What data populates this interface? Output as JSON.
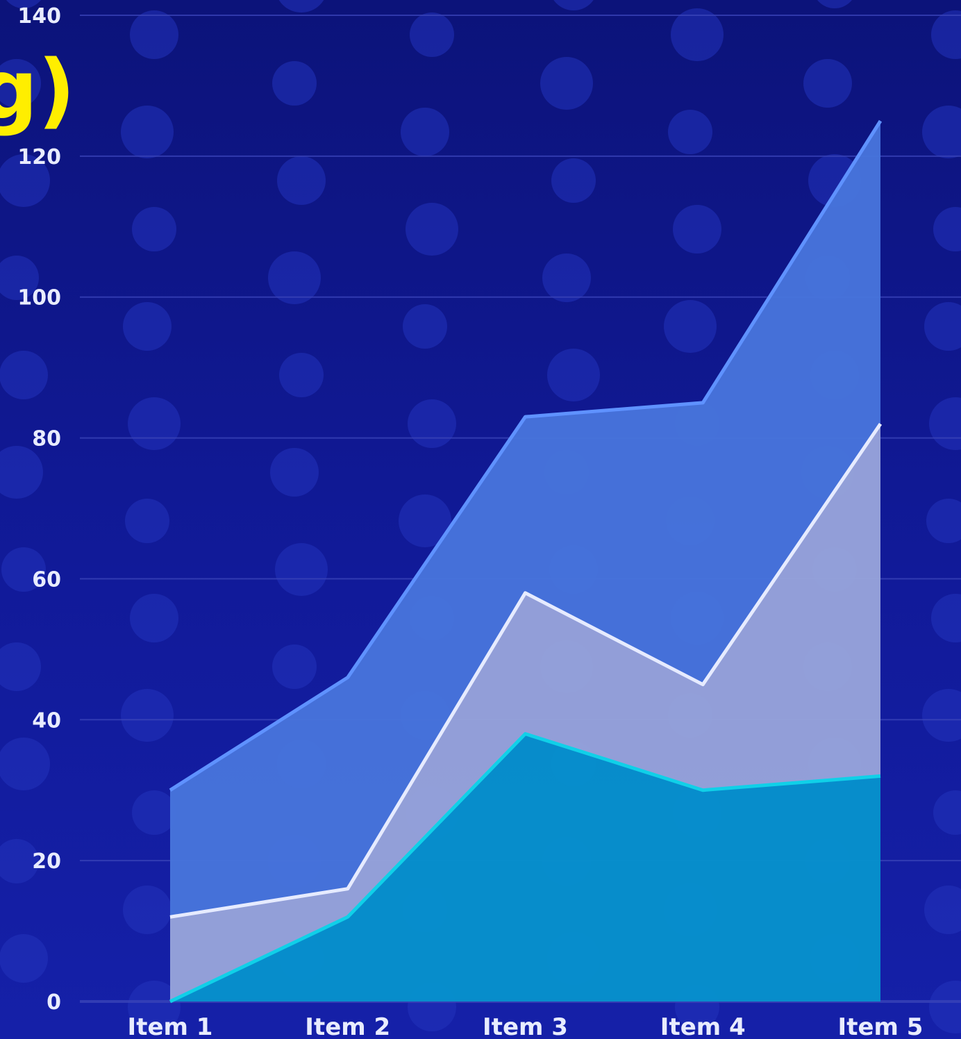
{
  "title_fragment": "g)",
  "colors": {
    "background": "#0f1790",
    "dots": "#2233bb",
    "gridline": "#3a44b8",
    "title": "#ffee00",
    "tick_label": "#e8ecff",
    "series_fill": [
      "#0791cc",
      "#97a3da",
      "#4774db"
    ],
    "series_edge": [
      "#10d0e8",
      "#e6ebff",
      "#5f92ff"
    ]
  },
  "chart_data": {
    "type": "area",
    "stacked": true,
    "categories": [
      "Item 1",
      "Item 2",
      "Item 3",
      "Item 4",
      "Item 5"
    ],
    "series": [
      {
        "values": [
          0,
          12,
          38,
          30,
          32
        ]
      },
      {
        "values": [
          12,
          4,
          20,
          15,
          50
        ]
      },
      {
        "values": [
          18,
          30,
          25,
          40,
          43
        ]
      }
    ],
    "y_ticks": [
      "0",
      "20",
      "40",
      "60",
      "80",
      "100",
      "120",
      "140"
    ],
    "ylim": [
      0,
      140
    ],
    "grid": true,
    "legend": "none"
  }
}
